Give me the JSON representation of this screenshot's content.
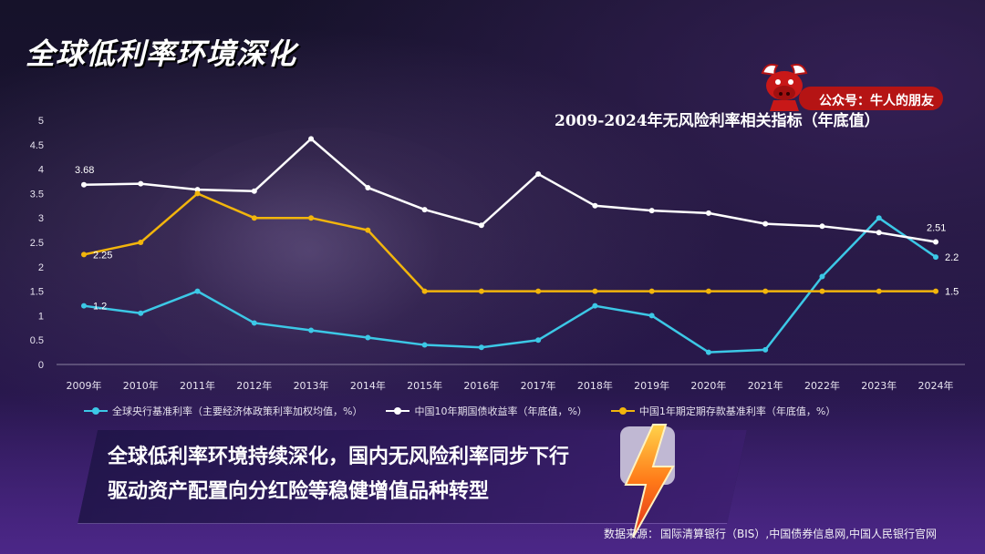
{
  "page": {
    "title": "全球低利率环境深化",
    "brand_label": "公众号：牛人的朋友",
    "chart_title": "2009-2024年无风险利率相关指标（年底值）",
    "banner_line1": "全球低利率环境持续深化，国内无风险利率同步下行",
    "banner_line2": "驱动资产配置向分红险等稳健增值品种转型",
    "source_prefix": "数据来源：",
    "source_text": "国际清算银行（BIS）,中国债券信息网,中国人民银行官网"
  },
  "chart_data": {
    "type": "line",
    "title": "2009-2024年无风险利率相关指标（年底值）",
    "categories": [
      "2009年",
      "2010年",
      "2011年",
      "2012年",
      "2013年",
      "2014年",
      "2015年",
      "2016年",
      "2017年",
      "2018年",
      "2019年",
      "2020年",
      "2021年",
      "2022年",
      "2023年",
      "2024年"
    ],
    "yticks": [
      "0",
      "0.5",
      "1",
      "1.5",
      "2",
      "2.5",
      "3",
      "3.5",
      "4",
      "4.5",
      "5"
    ],
    "ylim": [
      0,
      5
    ],
    "grid": false,
    "legend_position": "bottom",
    "series": [
      {
        "name": "全球央行基准利率（主要经济体政策利率加权均值，%）",
        "color": "#3cc8e6",
        "values": [
          1.2,
          1.05,
          1.5,
          0.85,
          0.7,
          0.55,
          0.4,
          0.35,
          0.5,
          1.2,
          1.0,
          0.25,
          0.3,
          1.8,
          3.0,
          2.2
        ],
        "labels": {
          "0": "1.2",
          "15": "2.2"
        }
      },
      {
        "name": "中国10年期国债收益率（年底值，%）",
        "color": "#ffffff",
        "values": [
          3.68,
          3.7,
          3.58,
          3.55,
          4.62,
          3.62,
          3.17,
          2.85,
          3.9,
          3.25,
          3.15,
          3.1,
          2.88,
          2.83,
          2.7,
          2.51
        ],
        "labels": {
          "0": "3.68",
          "15": "2.51"
        }
      },
      {
        "name": "中国1年期定期存款基准利率（年底值，%）",
        "color": "#f2b50c",
        "values": [
          2.25,
          2.5,
          3.5,
          3.0,
          3.0,
          2.75,
          1.5,
          1.5,
          1.5,
          1.5,
          1.5,
          1.5,
          1.5,
          1.5,
          1.5,
          1.5
        ],
        "labels": {
          "0": "2.25",
          "15": "1.5"
        }
      }
    ]
  }
}
